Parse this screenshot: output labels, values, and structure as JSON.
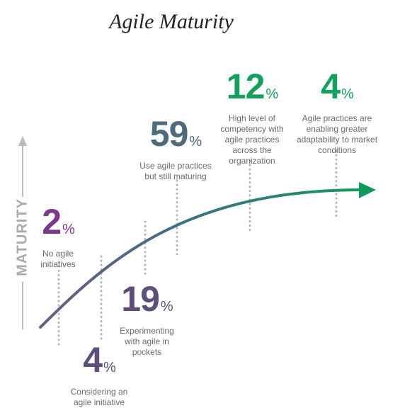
{
  "title": "Agile Maturity",
  "axis_label": "MATURITY",
  "percent_symbol": "%",
  "colors": {
    "curve_start": "#6b5a85",
    "curve_mid": "#3f6f86",
    "curve_end": "#0f9a5a",
    "axis": "#bbbbbb",
    "dots": "#b5b5b5"
  },
  "chart_data": {
    "type": "line",
    "title": "Agile Maturity",
    "ylabel": "MATURITY",
    "series": [
      {
        "values": [
          {
            "value": 2,
            "label": "No agile initiatives",
            "color": "#7a3a8c"
          },
          {
            "value": 4,
            "label": "Considering an agile initiative",
            "color": "#5e4f7a"
          },
          {
            "value": 19,
            "label": "Experimenting with agile in pockets",
            "color": "#5e4f7a"
          },
          {
            "value": 59,
            "label": "Use agile practices but still maturing",
            "color": "#4e6a7c"
          },
          {
            "value": 12,
            "label": "High level of competency with agile practices across the organization",
            "color": "#16a05d"
          },
          {
            "value": 4,
            "label": "Agile practices are enabling greater adaptability to market conditions",
            "color": "#16a05d"
          }
        ]
      }
    ]
  }
}
